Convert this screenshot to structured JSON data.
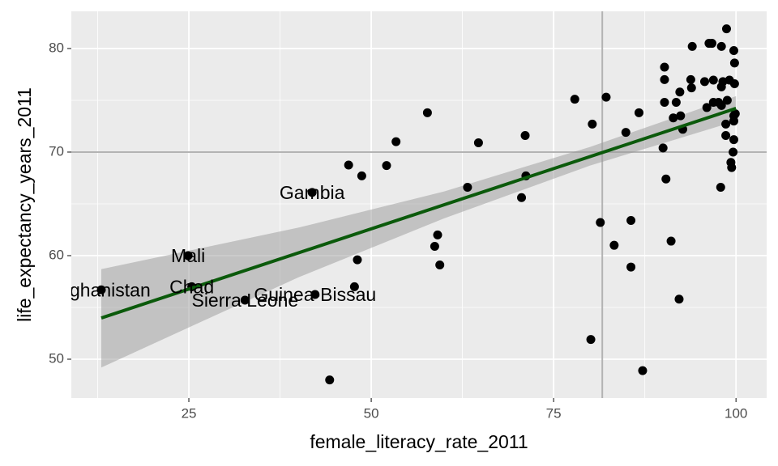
{
  "chart_data": {
    "type": "scatter",
    "x_label": "female_literacy_rate_2011",
    "y_label": "life_expectancy_years_2011",
    "xlim": [
      8.89,
      104.2
    ],
    "ylim": [
      46.25,
      83.59
    ],
    "xticks": [
      25,
      50,
      75,
      100
    ],
    "yticks": [
      50,
      60,
      70,
      80
    ],
    "grid": true,
    "point_color": "#000000",
    "x": [
      13,
      24.9,
      25.4,
      32.7,
      41.9,
      42.3,
      44.3,
      46.9,
      47.7,
      48.1,
      48.7,
      52.1,
      53.4,
      57.7,
      58.7,
      59.1,
      59.4,
      63.2,
      64.7,
      70.6,
      71.1,
      71.2,
      77.9,
      80.1,
      80.3,
      81.4,
      82.2,
      83.3,
      84.9,
      85.6,
      85.6,
      86.7,
      87.2,
      90.0,
      90.2,
      90.2,
      90.2,
      90.4,
      91.1,
      91.4,
      91.8,
      92.2,
      92.3,
      92.4,
      92.7,
      93.8,
      93.9,
      94.0,
      95.7,
      96.0,
      96.3,
      96.7,
      96.9,
      96.9,
      97.6,
      97.9,
      98.0,
      98.0,
      98.0,
      98.2,
      98.6,
      98.6,
      98.7,
      98.8,
      99.1,
      99.3,
      99.4,
      99.6,
      99.7,
      99.7,
      99.7,
      99.7,
      99.8,
      99.8,
      99.9
    ],
    "y": [
      56.7,
      60.0,
      57.0,
      55.7,
      66.1,
      56.25,
      48.0,
      68.75,
      57.0,
      59.6,
      67.7,
      68.7,
      71.0,
      73.8,
      60.9,
      62.0,
      59.1,
      66.6,
      70.9,
      65.6,
      71.6,
      67.7,
      75.1,
      51.9,
      72.7,
      63.2,
      75.3,
      61.0,
      71.9,
      63.4,
      58.9,
      73.8,
      48.9,
      70.4,
      78.2,
      77.0,
      74.8,
      67.4,
      61.4,
      73.3,
      74.8,
      55.8,
      75.8,
      73.5,
      72.2,
      77.0,
      76.2,
      80.2,
      76.8,
      74.3,
      80.5,
      80.5,
      76.95,
      74.8,
      74.8,
      66.6,
      80.2,
      76.3,
      74.5,
      76.8,
      72.7,
      71.6,
      81.9,
      75.0,
      76.95,
      69.0,
      68.5,
      70.0,
      79.8,
      71.2,
      73.5,
      73.0,
      78.6,
      76.6,
      73.7
    ],
    "labels": [
      "Afghanistan",
      "Mali",
      "Chad",
      "Sierra Leone",
      "Gambia",
      "Guinea-Bissau",
      null,
      null,
      null,
      null,
      null,
      null,
      null,
      null,
      null,
      null,
      null,
      null,
      null,
      null,
      null,
      null,
      null,
      null,
      null,
      null,
      null,
      null,
      null,
      null,
      null,
      null,
      null,
      null,
      null,
      null,
      null,
      null,
      null,
      null,
      null,
      null,
      null,
      null,
      null,
      null,
      null,
      null,
      null,
      null,
      null,
      null,
      null,
      null,
      null,
      null,
      null,
      null,
      null,
      null,
      null,
      null,
      null,
      null,
      null,
      null,
      null,
      null,
      null,
      null,
      null,
      null,
      null,
      null,
      null
    ],
    "fit": {
      "x": [
        13,
        100
      ],
      "y": [
        53.98,
        74.22
      ],
      "color": "#0b5a0b"
    },
    "band": {
      "x": [
        13,
        40,
        60,
        80,
        100
      ],
      "lower": [
        49.2,
        57.9,
        63.6,
        68.7,
        73.0
      ],
      "upper": [
        58.7,
        62.7,
        66.2,
        70.5,
        75.4
      ],
      "color": "#999999"
    },
    "vline": 81.67,
    "hline": 70,
    "ref_color": "#b3b3b3"
  }
}
